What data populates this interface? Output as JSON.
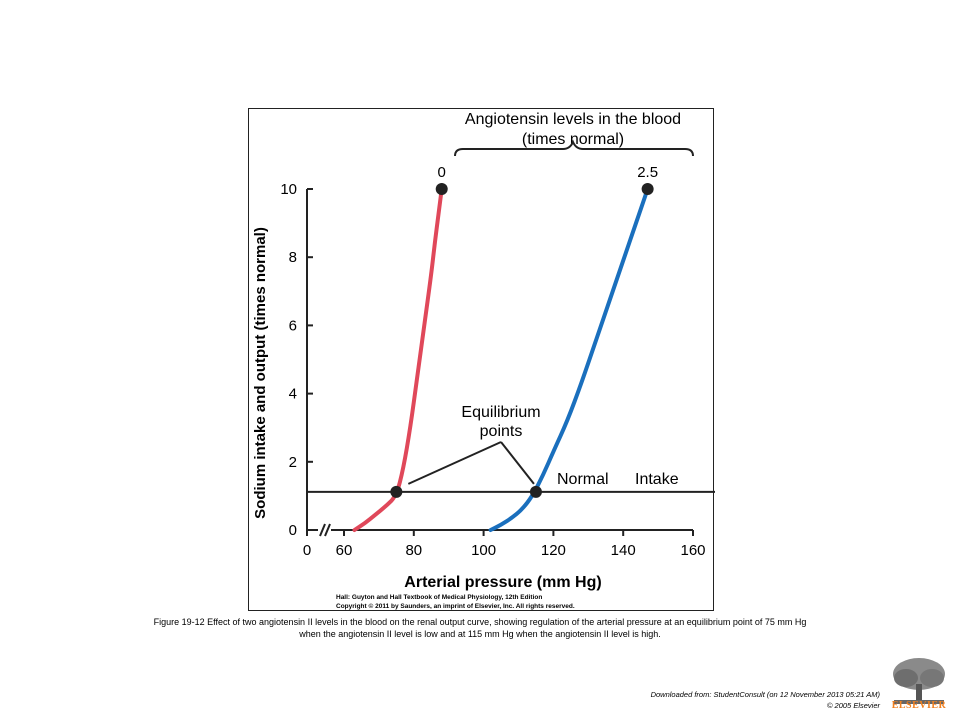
{
  "chart_data": {
    "type": "line",
    "header_lines": [
      "Angiotensin levels in the blood",
      "(times normal)"
    ],
    "xlabel": "Arterial pressure (mm Hg)",
    "ylabel": "Sodium intake and output (times normal)",
    "xlim": [
      0,
      160
    ],
    "x_axis_break_between": [
      0,
      60
    ],
    "ylim": [
      0,
      10
    ],
    "x_ticks": [
      0,
      60,
      80,
      100,
      120,
      140,
      160
    ],
    "y_ticks": [
      0,
      2,
      4,
      6,
      8,
      10
    ],
    "grid": false,
    "series": [
      {
        "name": "0",
        "color": "#e0485a",
        "x": [
          63,
          66,
          69,
          72,
          75,
          77,
          79,
          81,
          83,
          85,
          86,
          87,
          88
        ],
        "y": [
          0,
          0.2,
          0.45,
          0.7,
          1.0,
          1.8,
          3.0,
          4.5,
          6.0,
          7.5,
          8.4,
          9.2,
          10
        ]
      },
      {
        "name": "2.5",
        "color": "#1a6fbd",
        "x": [
          102,
          105,
          108,
          111,
          114,
          117,
          120,
          124,
          128,
          132,
          136,
          140,
          144,
          147
        ],
        "y": [
          0,
          0.15,
          0.35,
          0.6,
          1.0,
          1.6,
          2.3,
          3.2,
          4.3,
          5.5,
          6.7,
          7.9,
          9.1,
          10
        ]
      }
    ],
    "normal_intake": {
      "label_left": "Normal",
      "label_right": "Intake",
      "y": 1.0
    },
    "equilibrium_points": {
      "label_lines": [
        "Equilibrium",
        "points"
      ],
      "points": [
        {
          "x": 75,
          "y": 1.0
        },
        {
          "x": 115,
          "y": 1.0
        }
      ]
    },
    "source_lines": [
      "Hall: Guyton and Hall Textbook of Medical Physiology, 12th Edition",
      "Copyright © 2011 by Saunders, an imprint of Elsevier, Inc. All rights reserved."
    ]
  },
  "caption_lines": [
    "Figure 19-12 Effect of two angiotensin II levels in the blood on the renal output curve, showing regulation of the arterial pressure at an equilibrium point of 75 mm Hg",
    "when the angiotensin II level is low and at 115 mm Hg when the angiotensin II level is high."
  ],
  "download_lines": [
    "Downloaded from: StudentConsult (on 12 November 2013 05:21 AM)",
    "© 2005 Elsevier"
  ],
  "logo_label": "ELSEVIER",
  "colors": {
    "accent_logo": "#f08020"
  }
}
